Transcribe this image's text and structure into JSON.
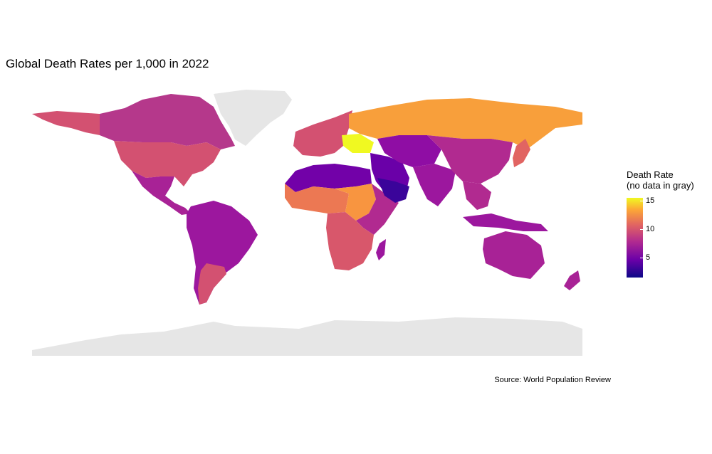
{
  "title": "Global Death Rates per 1,000 in 2022",
  "caption": "Source: World Population Review",
  "legend": {
    "title": "Death Rate\n(no data in gray)",
    "ticks": [
      15,
      10,
      5
    ],
    "min": 1.5,
    "max": 15.5,
    "palette": "plasma"
  },
  "colors": {
    "no_data": "#e6e6e6",
    "very_high": "#f0f921",
    "high": "#fca636",
    "mid_high": "#e16462",
    "mid": "#cc4778",
    "low": "#9c179e",
    "very_low": "#6a00a8",
    "lowest": "#0d0887"
  }
}
